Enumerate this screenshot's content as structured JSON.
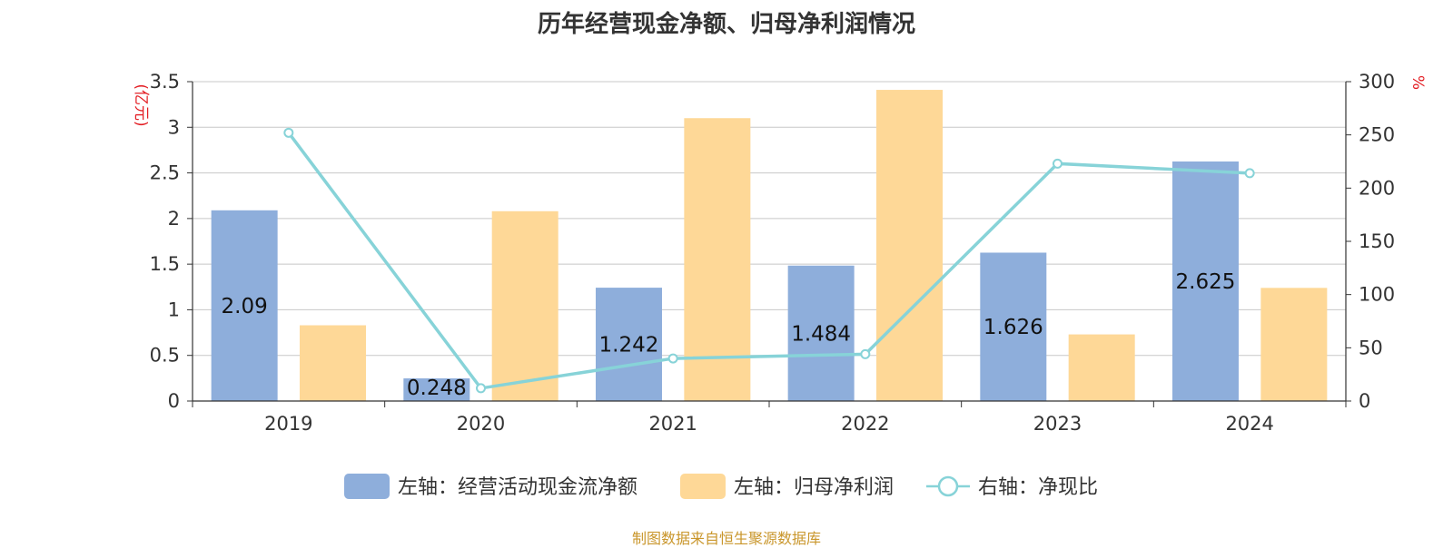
{
  "title": "历年经营现金净额、归母净利润情况",
  "source": "制图数据来自恒生聚源数据库",
  "colors": {
    "cash_bar": "#8eaedb",
    "profit_bar": "#fed897",
    "ratio_line": "#87d3d8",
    "unit_text": "#e31e24",
    "source_text": "#c9962b"
  },
  "chart_data": {
    "type": "bar",
    "categories": [
      "2019",
      "2020",
      "2021",
      "2022",
      "2023",
      "2024"
    ],
    "left_axis": {
      "unit": "(亿元)",
      "ticks": [
        "0",
        "0.5",
        "1",
        "1.5",
        "2",
        "2.5",
        "3",
        "3.5"
      ],
      "range": [
        0,
        3.5
      ]
    },
    "right_axis": {
      "unit": "%",
      "ticks": [
        "0",
        "50",
        "100",
        "150",
        "200",
        "250",
        "300"
      ],
      "range": [
        0,
        300
      ]
    },
    "series": [
      {
        "name": "左轴：经营活动现金流净额",
        "type": "bar",
        "axis": "left",
        "values": [
          2.09,
          0.248,
          1.242,
          1.484,
          1.626,
          2.625
        ],
        "labels": [
          "2.09",
          "0.248",
          "1.242",
          "1.484",
          "1.626",
          "2.625"
        ]
      },
      {
        "name": "左轴：归母净利润",
        "type": "bar",
        "axis": "left",
        "values": [
          0.83,
          2.08,
          3.1,
          3.41,
          0.73,
          1.24
        ]
      },
      {
        "name": "右轴：净现比",
        "type": "line",
        "axis": "right",
        "values": [
          252,
          12,
          40,
          44,
          223,
          214
        ]
      }
    ],
    "grid": true,
    "legend": "bottom"
  }
}
